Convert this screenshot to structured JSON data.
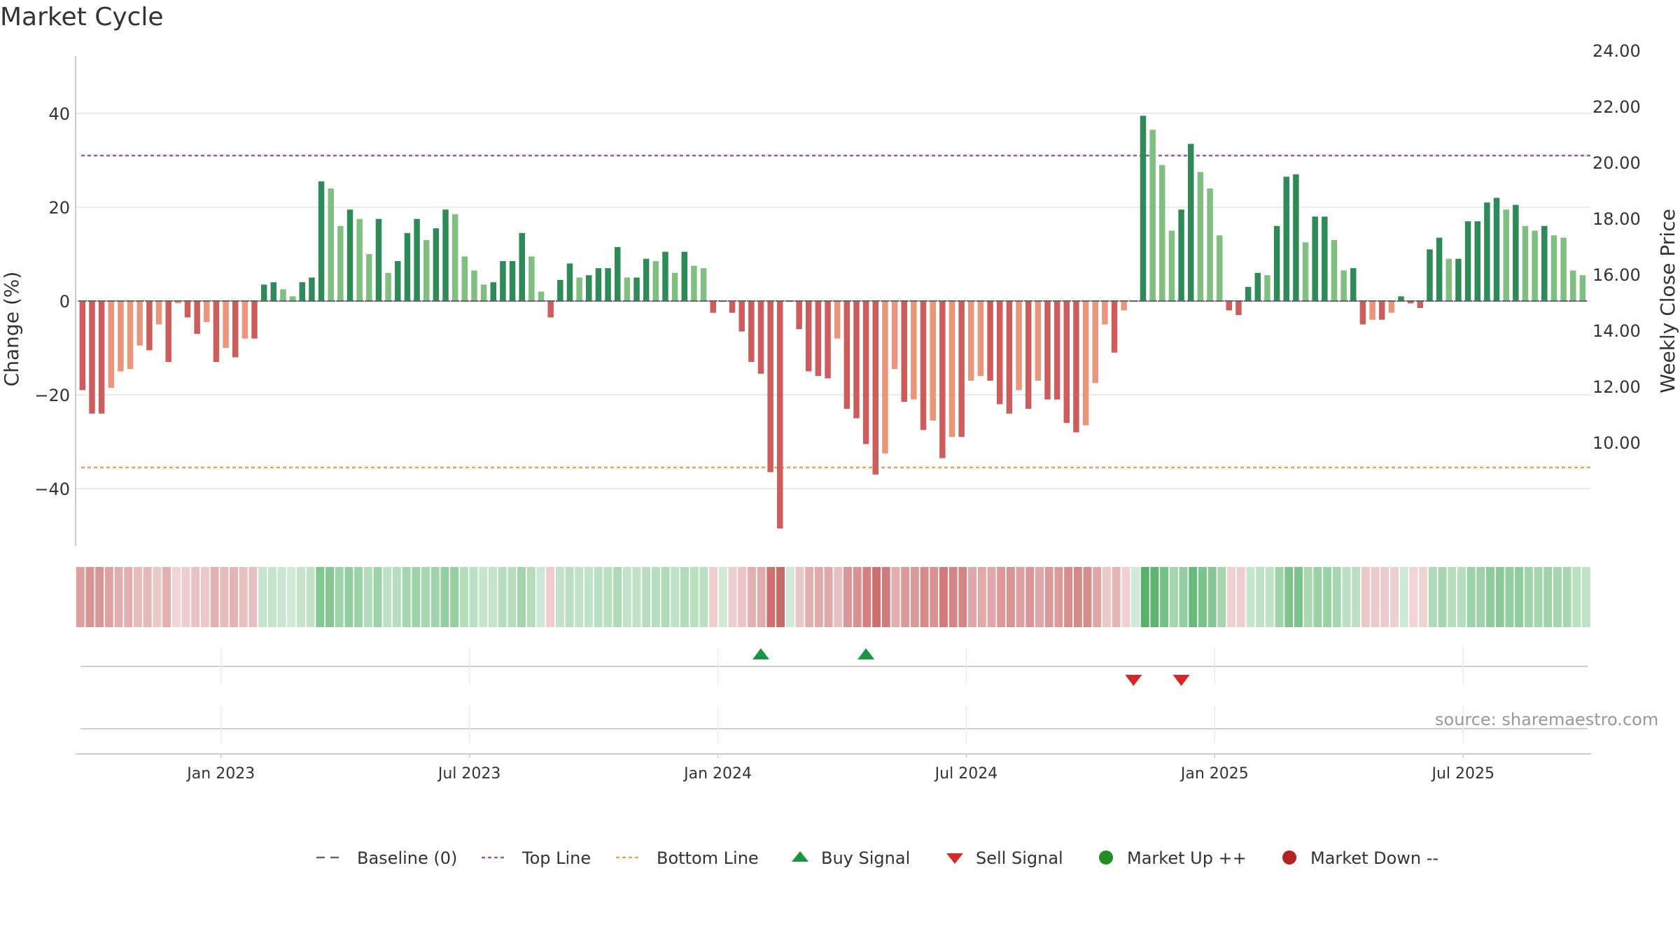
{
  "title": "Market Cycle",
  "source": "source: sharemaestro.com",
  "colors": {
    "up_strong": "#2e8b57",
    "up_light": "#7fbf7f",
    "down_strong": "#cd5c5c",
    "down_light": "#e9967a",
    "top_line": "#9b59b6",
    "bottom_line": "#f0a050",
    "buy": "#1a9641",
    "sell": "#d62728",
    "market_up": "#228b22",
    "market_down": "#b22222",
    "baseline": "#666666"
  },
  "chart_data": {
    "type": "bar",
    "title": "Market Cycle",
    "ylabel": "Change (%)",
    "y2label": "Weekly Close Price",
    "ylim": [
      -52,
      52
    ],
    "y_ticks": [
      40,
      20,
      0,
      -20,
      -40
    ],
    "y_tick_labels": [
      "40",
      "20",
      "0",
      "−20",
      "−40"
    ],
    "y2lim": [
      8.5,
      25.0
    ],
    "y2_ticks": [
      24,
      22,
      20,
      18,
      16,
      14,
      12,
      10
    ],
    "y2_tick_labels": [
      "24.00",
      "22.00",
      "20.00",
      "18.00",
      "16.00",
      "14.00",
      "12.00",
      "10.00"
    ],
    "top_line": 31,
    "bottom_line": -35.5,
    "x_start_week": -15,
    "x_ticks": [
      {
        "week": 0,
        "label": "Jan 2023"
      },
      {
        "week": 26,
        "label": "Jul 2023"
      },
      {
        "week": 52,
        "label": "Jan 2024"
      },
      {
        "week": 78,
        "label": "Jul 2024"
      },
      {
        "week": 104,
        "label": "Jan 2025"
      },
      {
        "week": 130,
        "label": "Jul 2025"
      }
    ],
    "values": [
      -19,
      -24,
      -24,
      -18.5,
      -15,
      -14.5,
      -9.5,
      -10.5,
      -5,
      -13,
      -0.5,
      -3.5,
      -7,
      -4.5,
      -13,
      -10,
      -12,
      -8,
      -8,
      3.5,
      4,
      2.5,
      1,
      4,
      5,
      25.5,
      24,
      16,
      19.5,
      17.5,
      10,
      17.5,
      6,
      8.5,
      14.5,
      17.5,
      13,
      15.5,
      19.5,
      18.5,
      9.5,
      6.5,
      3.5,
      4,
      8.5,
      8.5,
      14.5,
      9.5,
      2,
      -3.5,
      4.5,
      8,
      5,
      5.5,
      7,
      7,
      11.5,
      5,
      5,
      9,
      8.5,
      10.5,
      6,
      10.5,
      7.5,
      7,
      -2.5,
      0,
      -2.5,
      -6.5,
      -13,
      -15.5,
      -36.5,
      -48.5,
      0,
      -6,
      -15,
      -16,
      -16.5,
      -8,
      -23,
      -25,
      -30.5,
      -37,
      -32.5,
      -14.5,
      -21.5,
      -21,
      -27.5,
      -25.5,
      -33.5,
      -29,
      -29,
      -17,
      -16,
      -17,
      -22,
      -24,
      -19,
      -23,
      -17,
      -21,
      -21,
      -26,
      -28,
      -26.5,
      -17.5,
      -5,
      -11,
      -2,
      0,
      39.5,
      36.5,
      29,
      15,
      19.5,
      33.5,
      27.5,
      24,
      14,
      -2,
      -3,
      3,
      6,
      5.5,
      16,
      26.5,
      27,
      12.5,
      18,
      18,
      13,
      6.5,
      7,
      -5,
      -4,
      -4,
      -2.5,
      1,
      -0.5,
      -1.5,
      11,
      13.5,
      9,
      9,
      17,
      17,
      21,
      22,
      19.5,
      20.5,
      16,
      15,
      16,
      14,
      13.5,
      6.5,
      5.5
    ],
    "signals": [
      {
        "type": "buy",
        "week": 56
      },
      {
        "type": "buy",
        "week": 67
      },
      {
        "type": "sell",
        "week": 95
      },
      {
        "type": "sell",
        "week": 100
      }
    ]
  },
  "legend": [
    {
      "key": "baseline",
      "label": "Baseline (0)"
    },
    {
      "key": "top",
      "label": "Top Line"
    },
    {
      "key": "bottom",
      "label": "Bottom Line"
    },
    {
      "key": "buy",
      "label": "Buy Signal"
    },
    {
      "key": "sell",
      "label": "Sell Signal"
    },
    {
      "key": "mup",
      "label": "Market Up ++"
    },
    {
      "key": "mdown",
      "label": "Market Down --"
    }
  ]
}
